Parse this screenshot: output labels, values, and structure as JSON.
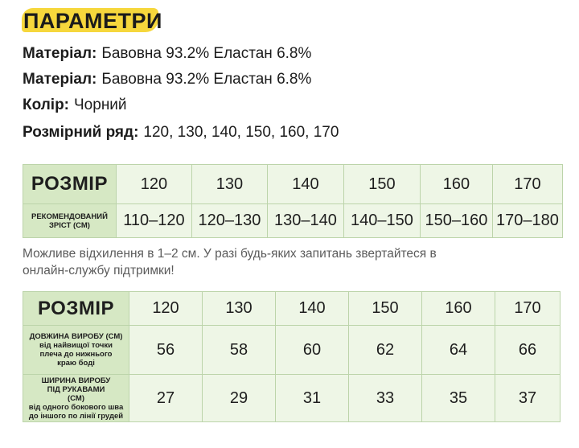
{
  "title": "ПАРАМЕТРИ",
  "params": [
    {
      "label": "Матеріал:",
      "value": "Бавовна 93.2% Еластан 6.8%"
    },
    {
      "label": "Матеріал:",
      "value": "Бавовна 93.2% Еластан 6.8%"
    },
    {
      "label": "Колір:",
      "value": "Чорний"
    },
    {
      "label": "Розмірний ряд:",
      "value": "120, 130, 140, 150, 160, 170"
    }
  ],
  "table1": {
    "header_label": "РОЗМІР",
    "sizes": [
      "120",
      "130",
      "140",
      "150",
      "160",
      "170"
    ],
    "row_label": "РЕКОМЕНДОВАНИЙ ЗРІСТ (СМ)",
    "heights": [
      "110–120",
      "120–130",
      "130–140",
      "140–150",
      "150–160",
      "170–180"
    ]
  },
  "note": "Можливе відхилення в 1–2 см. У разі будь-яких запитань звертайтеся в онлайн-службу підтримки!",
  "table2": {
    "header_label": "РОЗМІР",
    "sizes": [
      "120",
      "130",
      "140",
      "150",
      "160",
      "170"
    ],
    "rows": [
      {
        "label_main": "ДОВЖИНА ВИРОБУ (СМ)",
        "label_sub": "від найвищої точки плеча до нижнього краю боді",
        "values": [
          "56",
          "58",
          "60",
          "62",
          "64",
          "66"
        ]
      },
      {
        "label_main": "ШИРИНА ВИРОБУ ПІД РУКАВАМИ (СМ)",
        "label_sub": "від одного бокового шва до іншого по лінії грудей",
        "values": [
          "27",
          "29",
          "31",
          "33",
          "35",
          "37"
        ]
      }
    ]
  },
  "colors": {
    "title_highlight": "#f6d73c",
    "header_fill": "#d6e8c4",
    "cell_fill": "#eef6e6",
    "border": "#bcd4aa"
  }
}
